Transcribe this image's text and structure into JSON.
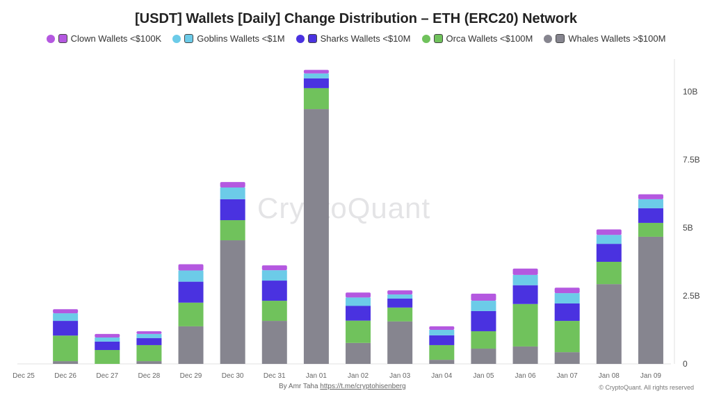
{
  "chart_data": {
    "type": "bar",
    "stacked": true,
    "title": "[USDT] Wallets [Daily] Change Distribution – ETH (ERC20) Network",
    "categories": [
      "Dec 25",
      "Dec 26",
      "Dec 27",
      "Dec 28",
      "Dec 29",
      "Dec 30",
      "Dec 31",
      "Jan 01",
      "Jan 02",
      "Jan 03",
      "Jan 04",
      "Jan 05",
      "Jan 06",
      "Jan 07",
      "Jan 08",
      "Jan 09"
    ],
    "series": [
      {
        "name": "Whales Wallets >$100M",
        "color": "#86858f",
        "icon": "whale-icon",
        "values": [
          0,
          0.1,
          0,
          0.1,
          1.38,
          4.54,
          1.58,
          9.36,
          0.77,
          1.56,
          0.15,
          0.56,
          0.64,
          0.43,
          2.93,
          4.67
        ]
      },
      {
        "name": "Orca Wallets <$100M",
        "color": "#70c25c",
        "icon": "orca-icon",
        "values": [
          0,
          0.94,
          0.51,
          0.59,
          0.87,
          0.74,
          0.74,
          0.77,
          0.82,
          0.51,
          0.54,
          0.64,
          1.56,
          1.15,
          0.82,
          0.51
        ]
      },
      {
        "name": "Sharks Wallets <$10M",
        "color": "#4a32e0",
        "icon": "shark-icon",
        "values": [
          0,
          0.54,
          0.31,
          0.26,
          0.77,
          0.77,
          0.74,
          0.36,
          0.54,
          0.33,
          0.36,
          0.74,
          0.69,
          0.64,
          0.66,
          0.54
        ]
      },
      {
        "name": "Goblins Wallets <$1M",
        "color": "#6ccbe8",
        "icon": "goblin-icon",
        "values": [
          0,
          0.28,
          0.15,
          0.15,
          0.41,
          0.43,
          0.38,
          0.18,
          0.31,
          0.15,
          0.2,
          0.38,
          0.38,
          0.38,
          0.33,
          0.33
        ]
      },
      {
        "name": "Clown Wallets <$100K",
        "color": "#b458e0",
        "icon": "clown-icon",
        "values": [
          0,
          0.15,
          0.13,
          0.1,
          0.23,
          0.2,
          0.18,
          0.13,
          0.18,
          0.15,
          0.13,
          0.26,
          0.23,
          0.2,
          0.2,
          0.18
        ]
      }
    ],
    "legend_order": [
      4,
      3,
      2,
      1,
      0
    ],
    "yticks": [
      "0",
      "2.5B",
      "5B",
      "7.5B",
      "10B"
    ],
    "ytick_values": [
      0,
      2.5,
      5,
      7.5,
      10
    ],
    "ylim": [
      0,
      11
    ],
    "y_axis_side": "right",
    "legend": "top",
    "grid": false
  },
  "watermark": "CryptoQuant",
  "footer": {
    "by": "By Amr Taha",
    "link": "https://t.me/cryptohisenberg",
    "copyright": "© CryptoQuant. All rights reserved"
  }
}
